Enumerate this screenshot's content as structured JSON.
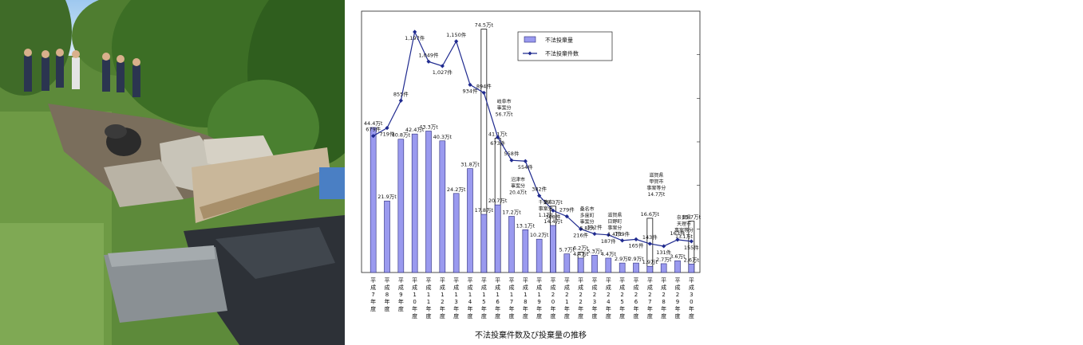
{
  "photo": {
    "description_icon": "illegal-dumping-photo"
  },
  "chart_data": {
    "type": "bar",
    "caption": "不法投棄件数及び投棄量の推移",
    "legend": [
      "不法投棄量",
      "不法投棄件数"
    ],
    "colors": {
      "bar": "#9a9aef",
      "bar_stroke": "#2a2a7a",
      "line": "#1f2a8f",
      "highlight_bar": "#ffffff"
    },
    "categories": [
      "平成7年度",
      "平成8年度",
      "平成9年度",
      "平成10年度",
      "平成11年度",
      "平成12年度",
      "平成13年度",
      "平成14年度",
      "平成15年度",
      "平成16年度",
      "平成17年度",
      "平成18年度",
      "平成19年度",
      "平成20年度",
      "平成21年度",
      "平成22年度",
      "平成23年度",
      "平成24年度",
      "平成25年度",
      "平成26年度",
      "平成27年度",
      "平成28年度",
      "平成29年度",
      "平成30年度"
    ],
    "tick_labels": [
      "平\n成\n7\n年\n度",
      "平\n成\n8\n年\n度",
      "平\n成\n9\n年\n度",
      "平\n成\n1\n0\n年\n度",
      "平\n成\n1\n1\n年\n度",
      "平\n成\n1\n2\n年\n度",
      "平\n成\n1\n3\n年\n度",
      "平\n成\n1\n4\n年\n度",
      "平\n成\n1\n5\n年\n度",
      "平\n成\n1\n6\n年\n度",
      "平\n成\n1\n7\n年\n度",
      "平\n成\n1\n8\n年\n度",
      "平\n成\n1\n9\n年\n度",
      "平\n成\n2\n0\n年\n度",
      "平\n成\n2\n1\n年\n度",
      "平\n成\n2\n2\n年\n度",
      "平\n成\n2\n3\n年\n度",
      "平\n成\n2\n4\n年\n度",
      "平\n成\n2\n5\n年\n度",
      "平\n成\n2\n6\n年\n度",
      "平\n成\n2\n7\n年\n度",
      "平\n成\n2\n8\n年\n度",
      "平\n成\n2\n9\n年\n度",
      "平\n成\n3\n0\n年\n度"
    ],
    "amount": {
      "name": "不法投棄量",
      "values": [
        44.4,
        21.9,
        40.8,
        42.4,
        43.3,
        40.3,
        24.2,
        31.8,
        17.8,
        20.7,
        17.2,
        13.1,
        10.2,
        14.4,
        5.7,
        4.4,
        5.3,
        4.4,
        2.9,
        2.9,
        1.9,
        2.7,
        3.6,
        2.6
      ],
      "labels": [
        "44.4万t",
        "21.9万t",
        "40.8万t",
        "42.4万t",
        "43.3万t",
        "40.3万t",
        "24.2万t",
        "31.8万t",
        "17.8万t",
        "20.7万t",
        "17.2万t",
        "13.1万t",
        "10.2万t",
        "14.4万t",
        "5.7万t",
        "4.4万t",
        "5.3万t",
        "4.4万t",
        "2.9万t",
        "2.9万t",
        "1.9万t",
        "2.7万t",
        "3.6万t",
        "2.6万t"
      ]
    },
    "totals": {
      "description": "large-case inclusive totals (outlined bars)",
      "entries": [
        {
          "index": 8,
          "value": 74.5,
          "label": "74.5万t"
        },
        {
          "index": 9,
          "value": 41.1,
          "label": "41.1万t"
        },
        {
          "index": 13,
          "value": 20.3,
          "label": "20.3万t"
        },
        {
          "index": 15,
          "value": 6.2,
          "label": "6.2万t"
        },
        {
          "index": 20,
          "value": 16.6,
          "label": "16.6万t"
        },
        {
          "index": 23,
          "value": 15.7,
          "label": "15.7万t"
        }
      ]
    },
    "cases": {
      "name": "不法投棄件数",
      "values": [
        679,
        719,
        855,
        1197,
        1049,
        1027,
        1150,
        934,
        894,
        673,
        558,
        554,
        382,
        308,
        279,
        216,
        192,
        187,
        159,
        165,
        143,
        131,
        163,
        155
      ],
      "labels": [
        "679件",
        "719件",
        "855件",
        "1,197件",
        "1,049件",
        "1,027件",
        "1,150件",
        "934件",
        "894件",
        "673件",
        "558件",
        "554件",
        "382件",
        "308件",
        "279件",
        "216件",
        "192件",
        "187件",
        "159件",
        "165件",
        "143件",
        "131件",
        "163件",
        "155件"
      ]
    },
    "annotations": [
      {
        "index": 9,
        "lines": [
          "岐阜市",
          "事案分",
          "56.7万t"
        ]
      },
      {
        "index": 10,
        "lines": [
          "沼津市",
          "事案分",
          "20.4万t"
        ]
      },
      {
        "index": 12,
        "lines": [
          "千葉市",
          "事案分",
          "1.1万t"
        ]
      },
      {
        "index": 15,
        "lines": [
          "桑名市",
          "多度町",
          "事案分",
          "5.8万t"
        ]
      },
      {
        "index": 17,
        "lines": [
          "滋賀県",
          "日野町",
          "事案分",
          "1.4万t"
        ]
      },
      {
        "index": 20,
        "lines": [
          "滋賀県",
          "甲賀市",
          "事案等分",
          "14.7万t"
        ]
      },
      {
        "index": 22,
        "lines": [
          "奈良県",
          "天理市",
          "事案等分",
          "13.1万t"
        ]
      }
    ],
    "ylim_amount": [
      0,
      80
    ],
    "ylim_cases": [
      0,
      1300
    ]
  }
}
